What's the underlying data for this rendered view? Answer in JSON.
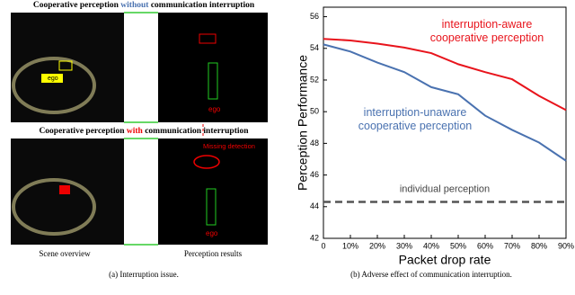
{
  "panel_a": {
    "row_1_title": {
      "before": "Cooperative perception",
      "emphasis": "without",
      "after": "communication interruption"
    },
    "row_2_title": {
      "before": "Cooperative perception",
      "emphasis": "with",
      "after": "communication interruption"
    },
    "ego_label": "ego",
    "missing_label": "Missing detection",
    "scene_label": "Scene overview",
    "result_label": "Perception results",
    "caption": "(a) Interruption issue."
  },
  "chart_data": {
    "type": "line",
    "x_label": "Packet drop rate",
    "y_label": "Perception Performance",
    "x": [
      0,
      10,
      20,
      30,
      40,
      50,
      60,
      70,
      80,
      90
    ],
    "xlim": [
      0,
      90
    ],
    "xticks": [
      {
        "value": 0,
        "label": "0"
      },
      {
        "value": 10,
        "label": "10%"
      },
      {
        "value": 20,
        "label": "20%"
      },
      {
        "value": 30,
        "label": "30%"
      },
      {
        "value": 40,
        "label": "40%"
      },
      {
        "value": 50,
        "label": "50%"
      },
      {
        "value": 60,
        "label": "60%"
      },
      {
        "value": 70,
        "label": "70%"
      },
      {
        "value": 80,
        "label": "80%"
      },
      {
        "value": 90,
        "label": "90%"
      }
    ],
    "ylim": [
      42,
      56.6
    ],
    "yticks": [
      42,
      44,
      46,
      48,
      50,
      52,
      54,
      56
    ],
    "series": [
      {
        "name": "interruption-aware cooperative perception",
        "color": "#e8141c",
        "values": [
          54.6,
          54.5,
          54.3,
          54.05,
          53.7,
          53.0,
          52.5,
          52.05,
          51.0,
          50.1
        ]
      },
      {
        "name": "interruption-unaware cooperative perception",
        "color": "#4a72b0",
        "values": [
          54.25,
          53.8,
          53.1,
          52.5,
          51.55,
          51.1,
          49.75,
          48.85,
          48.05,
          46.9
        ]
      }
    ],
    "reference_lines": [
      {
        "name": "individual perception",
        "value": 44.3,
        "color": "#555555"
      }
    ],
    "caption": "(b) Adverse effect of communication interruption."
  }
}
